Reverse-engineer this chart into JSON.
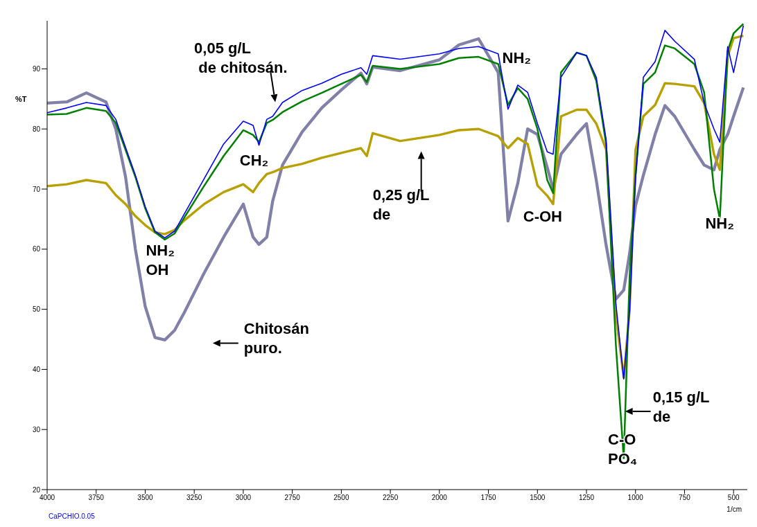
{
  "chart_data": {
    "type": "line",
    "xlabel": "1/cm",
    "ylabel": "%T",
    "x": [
      4000,
      3900,
      3800,
      3700,
      3650,
      3600,
      3550,
      3500,
      3450,
      3400,
      3350,
      3300,
      3200,
      3100,
      3000,
      2950,
      2920,
      2880,
      2850,
      2800,
      2700,
      2600,
      2500,
      2400,
      2370,
      2340,
      2200,
      2000,
      1900,
      1800,
      1700,
      1650,
      1600,
      1550,
      1500,
      1450,
      1420,
      1380,
      1300,
      1250,
      1200,
      1150,
      1100,
      1060,
      1030,
      1000,
      960,
      900,
      850,
      800,
      700,
      650,
      600,
      570,
      530,
      500,
      450
    ],
    "series": [
      {
        "color": "#8080a8",
        "values": [
          84.3,
          84.5,
          86,
          84.5,
          80,
          72,
          60,
          50.5,
          45.3,
          44.9,
          46.5,
          49.5,
          56,
          62,
          67.5,
          62,
          60.8,
          62,
          68,
          74,
          79.5,
          83.5,
          86.5,
          89.3,
          87.5,
          90.3,
          89.7,
          91.5,
          94,
          95,
          89.4,
          64.7,
          71,
          80,
          79.1,
          73.6,
          70,
          75.8,
          79.1,
          80.9,
          71.5,
          60.7,
          51.7,
          53.2,
          59.3,
          67.2,
          72.3,
          79.1,
          83.9,
          82.1,
          76.6,
          74,
          73.2,
          76.6,
          79.1,
          82.1,
          86.9
        ]
      },
      {
        "color": "#b8a000",
        "values": [
          70.5,
          70.8,
          71.5,
          71,
          69,
          67.5,
          65.5,
          64,
          62.8,
          62.5,
          63.2,
          64.8,
          67.5,
          69.5,
          70.8,
          69.5,
          71,
          72.5,
          72.8,
          73.5,
          74.2,
          75.2,
          76,
          76.8,
          75.5,
          79.3,
          78,
          79,
          79.8,
          80,
          78.8,
          76.8,
          78.5,
          77.5,
          70.6,
          68.9,
          67.5,
          82.1,
          83.2,
          83.2,
          80.9,
          76.6,
          49,
          38.6,
          50,
          76.5,
          82.1,
          84,
          87.6,
          87.5,
          87.1,
          84.3,
          75.8,
          73.2,
          92.1,
          95.1,
          95.5
        ]
      },
      {
        "color": "#008000",
        "values": [
          82.4,
          82.5,
          83.5,
          83,
          81,
          76.5,
          72,
          66.8,
          62.8,
          61.6,
          62.6,
          65.3,
          70.5,
          75.5,
          79.8,
          79,
          77.8,
          81,
          81.5,
          82.8,
          84.6,
          86,
          87.5,
          89,
          87.8,
          90.5,
          90,
          90.8,
          91.8,
          92,
          90.8,
          84,
          86.8,
          85,
          80,
          71.5,
          69.3,
          89.4,
          92.7,
          92.2,
          88,
          77.5,
          44,
          25.2,
          55.5,
          72.3,
          87.5,
          89.4,
          93.9,
          93.4,
          90.8,
          86.1,
          70,
          65,
          93,
          95.9,
          97.5
        ]
      },
      {
        "color": "#0000ff",
        "values": [
          82.7,
          83.5,
          84.4,
          83.9,
          81.6,
          76.9,
          72.3,
          67.1,
          63,
          61.9,
          63,
          65.9,
          71.7,
          77.5,
          81.3,
          80.6,
          77.3,
          81.6,
          82.1,
          84.4,
          86.4,
          87.6,
          89.1,
          90.2,
          89.1,
          92.2,
          91.6,
          92.5,
          93.4,
          93.7,
          92.5,
          83.3,
          87.3,
          86.1,
          80.9,
          76.2,
          75.8,
          88.6,
          92.7,
          92.2,
          88.6,
          78.3,
          50.9,
          38.4,
          49.7,
          71.5,
          88.6,
          91.2,
          96.4,
          94.6,
          91.6,
          84.3,
          80,
          77.8,
          93.7,
          89.4,
          97.2
        ]
      }
    ],
    "xlim": [
      4000,
      430
    ],
    "xticks": [
      4000,
      3750,
      3500,
      3250,
      3000,
      2750,
      2500,
      2250,
      2000,
      1750,
      1500,
      1250,
      1000,
      750,
      500
    ],
    "ylim": [
      20,
      98
    ],
    "yticks": [
      20,
      30,
      40,
      50,
      60,
      70,
      80,
      90
    ],
    "annotations": [
      "0,05 g/L\n de chitosán.",
      "CH₂",
      "NH₂\nOH",
      "Chitosán\npuro.",
      "0,25 g/L\nde",
      "NH₂",
      "C-OH",
      "NH₂",
      "0,15 g/L\nde",
      "C-O\nPO₄",
      "CaPCHIO.0.05"
    ]
  }
}
